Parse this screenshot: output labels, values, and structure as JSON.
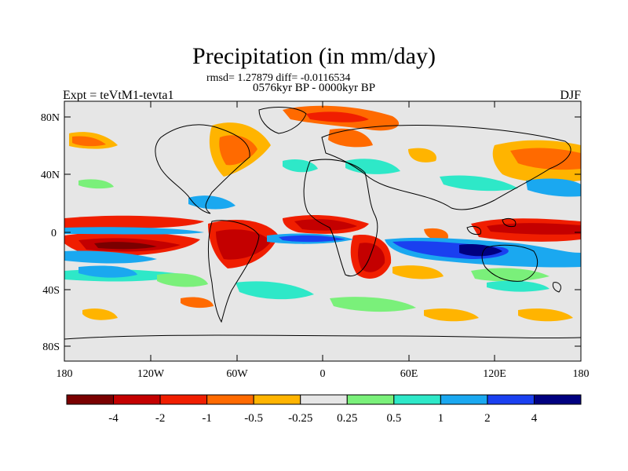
{
  "title": "Precipitation (in mm/day)",
  "stats": "rmsd= 1.27879 diff= -0.0116534",
  "period": "0576kyr BP - 0000kyr BP",
  "expt": "Expt = teVtM1-tevta1",
  "season": "DJF",
  "lat_ticks": [
    "80N",
    "40N",
    "0",
    "40S",
    "80S"
  ],
  "lon_ticks": [
    "180",
    "120W",
    "60W",
    "0",
    "60E",
    "120E",
    "180"
  ],
  "colorbar": {
    "labels": [
      "-4",
      "-2",
      "-1",
      "-0.5",
      "-0.25",
      "0.25",
      "0.5",
      "1",
      "2",
      "4"
    ],
    "colors": [
      "#7a0000",
      "#c40000",
      "#f01e00",
      "#ff6a00",
      "#ffb400",
      "#e6e6e6",
      "#7af07a",
      "#2ee8c8",
      "#1aa8f0",
      "#1a40f0",
      "#000080"
    ]
  },
  "map_colors": {
    "background": "#e6e6e6",
    "coast": "#000000"
  }
}
